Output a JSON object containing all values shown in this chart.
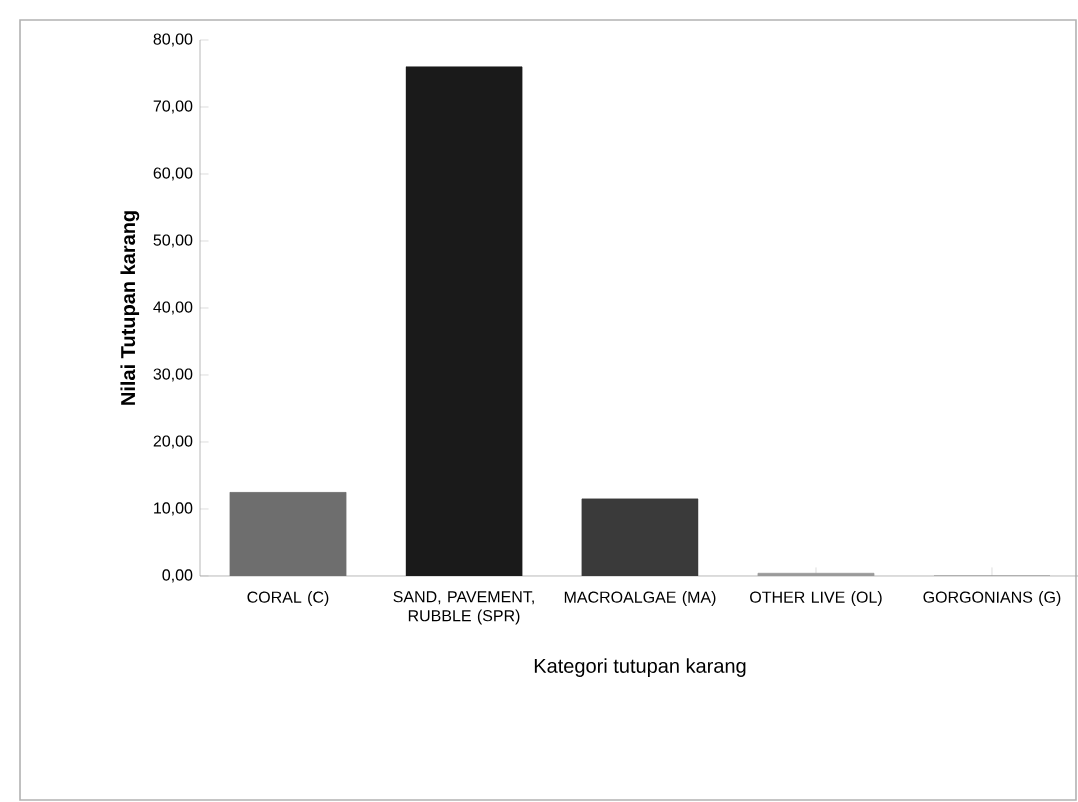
{
  "chart_data": {
    "type": "bar",
    "xlabel": "Kategori tutupan karang",
    "ylabel": "Nilai Tutupan karang",
    "categories": [
      "CORAL (C)",
      "SAND, PAVEMENT, RUBBLE (SPR)",
      "MACROALGAE (MA)",
      "OTHER LIVE (OL)",
      "GORGONIANS (G)"
    ],
    "values": [
      12.5,
      76,
      11.5,
      0.4,
      0
    ],
    "colors": [
      "#6e6e6e",
      "#1a1a1a",
      "#3a3a3a",
      "#9a9a9a",
      "#9a9a9a"
    ],
    "ylim": [
      0,
      80
    ],
    "yticks": [
      {
        "value": 0,
        "label": "0,00"
      },
      {
        "value": 10,
        "label": "10,00"
      },
      {
        "value": 20,
        "label": "20,00"
      },
      {
        "value": 30,
        "label": "30,00"
      },
      {
        "value": 40,
        "label": "40,00"
      },
      {
        "value": 50,
        "label": "50,00"
      },
      {
        "value": 60,
        "label": "60,00"
      },
      {
        "value": 70,
        "label": "70,00"
      },
      {
        "value": 80,
        "label": "80,00"
      }
    ],
    "grid": false
  }
}
